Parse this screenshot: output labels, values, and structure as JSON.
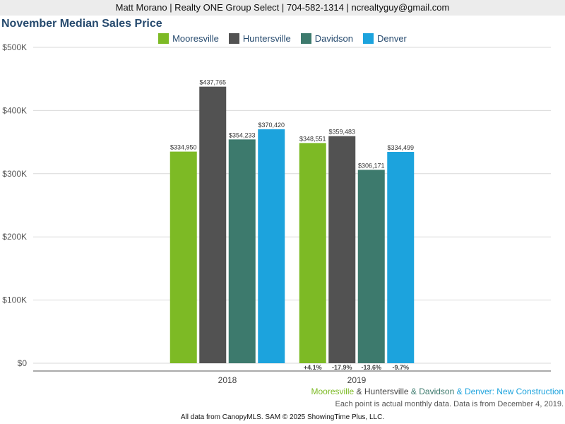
{
  "header": {
    "contact": "Matt Morano | Realty ONE Group Select | 704-582-1314 | ncrealtyguy@gmail.com"
  },
  "chart_data": {
    "type": "bar",
    "title": "November Median Sales Price",
    "categories": [
      "2018",
      "2019"
    ],
    "series": [
      {
        "name": "Mooresville",
        "color": "#7dba25",
        "values": [
          334950,
          348551
        ],
        "labels": [
          "$334,950",
          "$348,551"
        ]
      },
      {
        "name": "Huntersville",
        "color": "#525252",
        "values": [
          437765,
          359483
        ],
        "labels": [
          "$437,765",
          "$359,483"
        ]
      },
      {
        "name": "Davidson",
        "color": "#3d7a6d",
        "values": [
          354233,
          306171
        ],
        "labels": [
          "$354,233",
          "$306,171"
        ]
      },
      {
        "name": "Denver",
        "color": "#1ca3dd",
        "values": [
          370420,
          334499
        ],
        "labels": [
          "$370,420",
          "$334,499"
        ]
      }
    ],
    "change_labels": [
      "+4.1%",
      "-17.9%",
      "-13.6%",
      "-9.7%"
    ],
    "yticks": [
      0,
      100000,
      200000,
      300000,
      400000,
      500000
    ],
    "ytick_labels": [
      "$0",
      "$100K",
      "$200K",
      "$300K",
      "$400K",
      "$500K"
    ],
    "ylim": [
      0,
      500000
    ],
    "grid": true,
    "legend_position": "top-center"
  },
  "footer": {
    "mooresville": "Mooresville",
    "amp1": " & ",
    "huntersville": "Huntersville",
    "amp2": " & ",
    "davidson": "Davidson",
    "amp3": " & ",
    "denver": "Denver",
    "suffix": ": New Construction",
    "note": "Each point is actual monthly data. Data is from December 4, 2019.",
    "source": "All data from CanopyMLS. SAM © 2025 ShowingTime Plus, LLC."
  }
}
